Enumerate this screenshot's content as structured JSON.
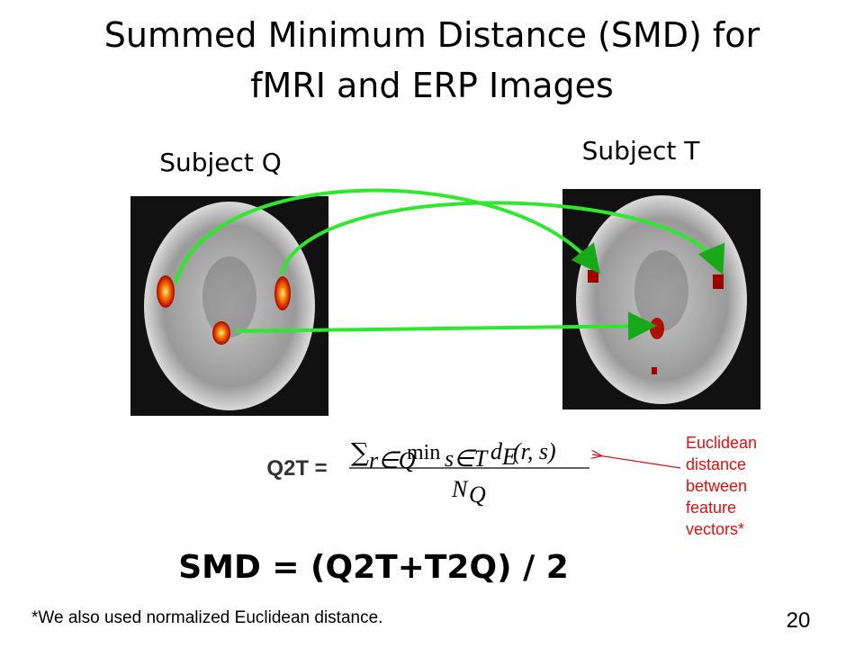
{
  "slide": {
    "title_lines": [
      "Summed Minimum Distance (SMD) for",
      "fMRI and ERP Images"
    ],
    "subject_q": "Subject Q",
    "subject_t": "Subject T",
    "q2t_label": "Q2T =",
    "formula": {
      "sum": "∑",
      "sum_sub": "r∈Q",
      "min": "min",
      "min_sub": "s∈T",
      "d": "d",
      "d_sub": "E",
      "args": "(r, s)",
      "den": "N",
      "den_sub": "Q"
    },
    "annotation_lines": [
      "Euclidean",
      "distance",
      "between",
      "feature",
      "vectors*"
    ],
    "smd": "SMD = (Q2T+T2Q) / 2",
    "footnote": "*We also used normalized Euclidean distance.",
    "page_number": "20"
  }
}
